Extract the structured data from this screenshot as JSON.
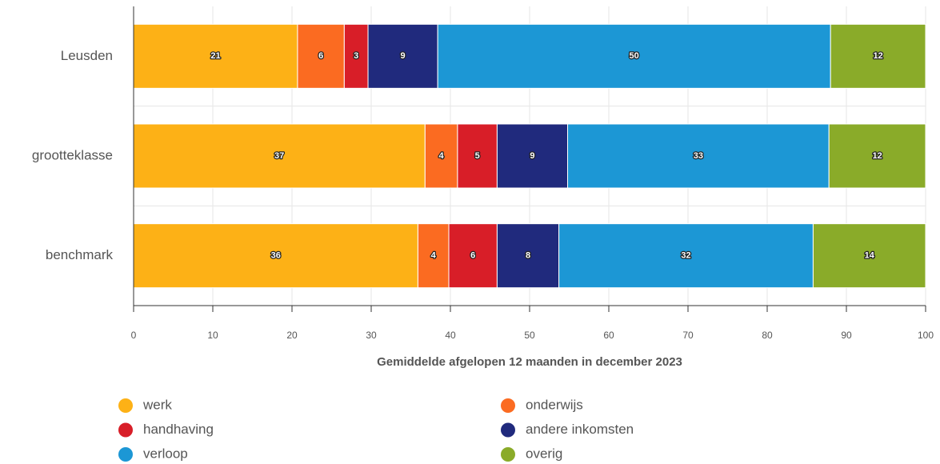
{
  "chart_data": {
    "type": "stacked-bar-horizontal",
    "categories": [
      "Leusden",
      "grootteklasse",
      "benchmark"
    ],
    "series": [
      {
        "name": "werk",
        "color": "#fdb116",
        "values": [
          20.7,
          36.8,
          35.9
        ],
        "value_labels": [
          "21",
          "37",
          "36"
        ]
      },
      {
        "name": "onderwijs",
        "color": "#fb6b21",
        "values": [
          5.9,
          4.1,
          3.9
        ],
        "value_labels": [
          "6",
          "4",
          "4"
        ]
      },
      {
        "name": "handhaving",
        "color": "#d81e28",
        "values": [
          3.0,
          5.0,
          6.1
        ],
        "value_labels": [
          "3",
          "5",
          "6"
        ]
      },
      {
        "name": "andere inkomsten",
        "color": "#202a7d",
        "values": [
          8.8,
          8.9,
          7.8
        ],
        "value_labels": [
          "9",
          "9",
          "8"
        ]
      },
      {
        "name": "verloop",
        "color": "#1c97d5",
        "values": [
          49.6,
          33.0,
          32.1
        ],
        "value_labels": [
          "50",
          "33",
          "32"
        ]
      },
      {
        "name": "overig",
        "color": "#8aab29",
        "values": [
          12.0,
          12.2,
          14.2
        ],
        "value_labels": [
          "12",
          "12",
          "14"
        ]
      }
    ],
    "xlabel": "Gemiddelde afgelopen 12 maanden in december 2023",
    "xlim": [
      0,
      100
    ],
    "xticks": [
      0,
      10,
      20,
      30,
      40,
      50,
      60,
      70,
      80,
      90,
      100
    ],
    "grid": true,
    "legend": "bottom"
  }
}
